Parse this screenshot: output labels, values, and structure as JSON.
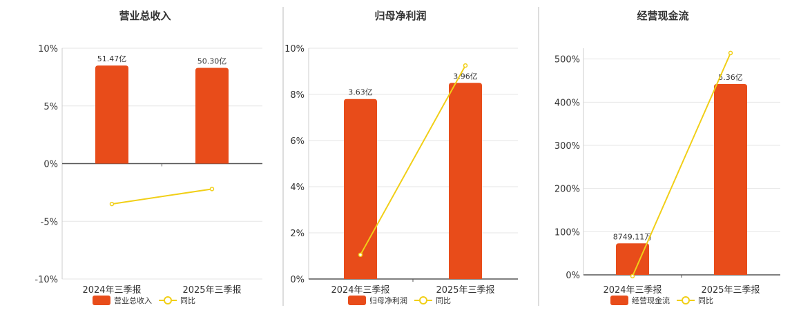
{
  "colors": {
    "bar": "#e84c1a",
    "line": "#f1cf17",
    "grid": "#e6e6e6",
    "axis": "#555555",
    "separator": "#bbbbbb",
    "text": "#333333"
  },
  "chart_data": [
    {
      "type": "bar",
      "title": "营业总收入",
      "categories": [
        "2024年三季报",
        "2025年三季报"
      ],
      "yticks": [
        "10%",
        "5%",
        "0%",
        "-5%",
        "-10%"
      ],
      "ylim": [
        -10,
        10
      ],
      "series": [
        {
          "name": "营业总收入",
          "type": "bar",
          "values": [
            8.5,
            8.3
          ],
          "labels": [
            "51.47亿",
            "50.30亿"
          ]
        },
        {
          "name": "同比",
          "type": "line",
          "values": [
            -3.5,
            -2.2
          ]
        }
      ],
      "grid": true,
      "legend": "bottom"
    },
    {
      "type": "bar",
      "title": "归母净利润",
      "categories": [
        "2024年三季报",
        "2025年三季报"
      ],
      "yticks": [
        "10%",
        "8%",
        "6%",
        "4%",
        "2%",
        "0%"
      ],
      "ylim": [
        0,
        10
      ],
      "series": [
        {
          "name": "归母净利润",
          "type": "bar",
          "values": [
            7.8,
            8.5
          ],
          "labels": [
            "3.63亿",
            "3.96亿"
          ]
        },
        {
          "name": "同比",
          "type": "line",
          "values": [
            1.05,
            9.25
          ]
        }
      ],
      "grid": true,
      "legend": "bottom"
    },
    {
      "type": "bar",
      "title": "经营现金流",
      "categories": [
        "2024年三季报",
        "2025年三季报"
      ],
      "yticks": [
        "500%",
        "400%",
        "300%",
        "200%",
        "100%",
        "0%"
      ],
      "ylim": [
        0,
        525
      ],
      "series": [
        {
          "name": "经营现金流",
          "type": "bar",
          "values": [
            73,
            442
          ],
          "labels": [
            "8749.11万",
            "5.36亿"
          ]
        },
        {
          "name": "同比",
          "type": "line",
          "values": [
            -3,
            514
          ]
        }
      ],
      "grid": true,
      "legend": "bottom"
    }
  ]
}
